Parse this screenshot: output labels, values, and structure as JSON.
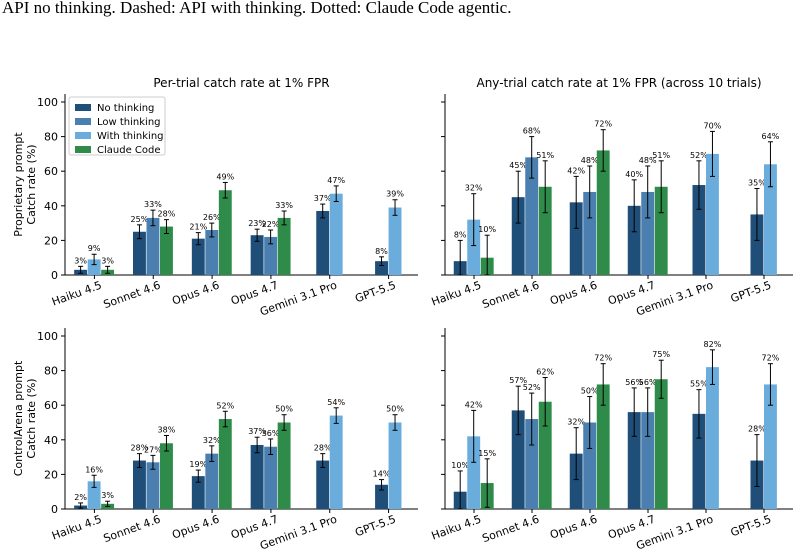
{
  "caption": "API no thinking. Dashed: API with thinking. Dotted: Claude Code agentic.",
  "chart_data": [
    {
      "type": "bar",
      "title": "Per-trial catch rate at 1% FPR",
      "ylabel": "Proprietary prompt\nCatch rate (%)",
      "categories": [
        "Haiku 4.5",
        "Sonnet 4.6",
        "Opus 4.6",
        "Opus 4.7",
        "Gemini 3.1 Pro",
        "GPT-5.5"
      ],
      "ylim": [
        0,
        100
      ],
      "yticks": [
        0,
        20,
        40,
        60,
        80,
        100
      ],
      "legend": "top-left",
      "series": [
        {
          "name": "No thinking",
          "color": "#1f4e79",
          "values": [
            3,
            25,
            21,
            23,
            37,
            8
          ],
          "err": [
            2,
            4,
            3.5,
            3.5,
            4,
            2.5
          ],
          "labels": [
            "3%",
            "25%",
            "21%",
            "23%",
            "37%",
            "8%"
          ]
        },
        {
          "name": "Low thinking",
          "color": "#4a7fb0",
          "values": [
            null,
            33,
            26,
            22,
            null,
            null
          ],
          "err": [
            null,
            4.5,
            4,
            4,
            null,
            null
          ],
          "labels": [
            null,
            "33%",
            "26%",
            "22%",
            null,
            null
          ]
        },
        {
          "name": "With thinking",
          "color": "#6aaddc",
          "values": [
            9,
            null,
            null,
            null,
            47,
            39
          ],
          "err": [
            3,
            null,
            null,
            null,
            4.5,
            4.5
          ],
          "labels": [
            "9%",
            null,
            null,
            null,
            "47%",
            "39%"
          ]
        },
        {
          "name": "Claude Code",
          "color": "#2e8b4a",
          "values": [
            3,
            28,
            49,
            33,
            null,
            null
          ],
          "err": [
            2,
            4,
            4.5,
            4,
            null,
            null
          ],
          "labels": [
            "3%",
            "28%",
            "49%",
            "33%",
            null,
            null
          ]
        }
      ]
    },
    {
      "type": "bar",
      "title": "Any-trial catch rate at 1% FPR (across 10 trials)",
      "ylabel": "",
      "categories": [
        "Haiku 4.5",
        "Sonnet 4.6",
        "Opus 4.6",
        "Opus 4.7",
        "Gemini 3.1 Pro",
        "GPT-5.5"
      ],
      "ylim": [
        0,
        100
      ],
      "yticks": [
        0,
        20,
        40,
        60,
        80,
        100
      ],
      "series": [
        {
          "name": "No thinking",
          "color": "#1f4e79",
          "values": [
            8,
            45,
            42,
            40,
            52,
            35
          ],
          "err": [
            12,
            15,
            15,
            15,
            14,
            15
          ],
          "labels": [
            "8%",
            "45%",
            "42%",
            "40%",
            "52%",
            "35%"
          ]
        },
        {
          "name": "Low thinking",
          "color": "#4a7fb0",
          "values": [
            null,
            68,
            48,
            48,
            null,
            null
          ],
          "err": [
            null,
            12,
            15,
            15,
            null,
            null
          ],
          "labels": [
            null,
            "68%",
            "48%",
            "48%",
            null,
            null
          ]
        },
        {
          "name": "With thinking",
          "color": "#6aaddc",
          "values": [
            32,
            null,
            null,
            null,
            70,
            64
          ],
          "err": [
            15,
            null,
            null,
            null,
            13,
            13
          ],
          "labels": [
            "32%",
            null,
            null,
            null,
            "70%",
            "64%"
          ]
        },
        {
          "name": "Claude Code",
          "color": "#2e8b4a",
          "values": [
            10,
            51,
            72,
            51,
            null,
            null
          ],
          "err": [
            13,
            15,
            12,
            15,
            null,
            null
          ],
          "labels": [
            "10%",
            "51%",
            "72%",
            "51%",
            null,
            null
          ]
        }
      ]
    },
    {
      "type": "bar",
      "title": "",
      "ylabel": "ControlArena prompt\nCatch rate (%)",
      "categories": [
        "Haiku 4.5",
        "Sonnet 4.6",
        "Opus 4.6",
        "Opus 4.7",
        "Gemini 3.1 Pro",
        "GPT-5.5"
      ],
      "ylim": [
        0,
        100
      ],
      "yticks": [
        0,
        20,
        40,
        60,
        80,
        100
      ],
      "series": [
        {
          "name": "No thinking",
          "color": "#1f4e79",
          "values": [
            2,
            28,
            19,
            37,
            28,
            14
          ],
          "err": [
            1.5,
            4,
            3.5,
            4.5,
            4,
            3
          ],
          "labels": [
            "2%",
            "28%",
            "19%",
            "37%",
            "28%",
            "14%"
          ]
        },
        {
          "name": "Low thinking",
          "color": "#4a7fb0",
          "values": [
            null,
            27,
            32,
            36,
            null,
            null
          ],
          "err": [
            null,
            4,
            4.5,
            4.5,
            null,
            null
          ],
          "labels": [
            null,
            "27%",
            "32%",
            "36%",
            null,
            null
          ]
        },
        {
          "name": "With thinking",
          "color": "#6aaddc",
          "values": [
            16,
            null,
            null,
            null,
            54,
            50
          ],
          "err": [
            3.5,
            null,
            null,
            null,
            4.5,
            4.5
          ],
          "labels": [
            "16%",
            null,
            null,
            null,
            "54%",
            "50%"
          ]
        },
        {
          "name": "Claude Code",
          "color": "#2e8b4a",
          "values": [
            3,
            38,
            52,
            50,
            null,
            null
          ],
          "err": [
            1.5,
            4.5,
            4.5,
            4.5,
            null,
            null
          ],
          "labels": [
            "3%",
            "38%",
            "52%",
            "50%",
            null,
            null
          ]
        }
      ]
    },
    {
      "type": "bar",
      "title": "",
      "ylabel": "",
      "categories": [
        "Haiku 4.5",
        "Sonnet 4.6",
        "Opus 4.6",
        "Opus 4.7",
        "Gemini 3.1 Pro",
        "GPT-5.5"
      ],
      "ylim": [
        0,
        100
      ],
      "yticks": [
        0,
        20,
        40,
        60,
        80,
        100
      ],
      "series": [
        {
          "name": "No thinking",
          "color": "#1f4e79",
          "values": [
            10,
            57,
            32,
            56,
            55,
            28
          ],
          "err": [
            12,
            14,
            15,
            14,
            14,
            15
          ],
          "labels": [
            "10%",
            "57%",
            "32%",
            "56%",
            "55%",
            "28%"
          ]
        },
        {
          "name": "Low thinking",
          "color": "#4a7fb0",
          "values": [
            null,
            52,
            50,
            56,
            null,
            null
          ],
          "err": [
            null,
            15,
            15,
            14,
            null,
            null
          ],
          "labels": [
            null,
            "52%",
            "50%",
            "56%",
            null,
            null
          ]
        },
        {
          "name": "With thinking",
          "color": "#6aaddc",
          "values": [
            42,
            null,
            null,
            null,
            82,
            72
          ],
          "err": [
            15,
            null,
            null,
            null,
            10,
            12
          ],
          "labels": [
            "42%",
            null,
            null,
            null,
            "82%",
            "72%"
          ]
        },
        {
          "name": "Claude Code",
          "color": "#2e8b4a",
          "values": [
            15,
            62,
            72,
            75,
            null,
            null
          ],
          "err": [
            14,
            14,
            12,
            11,
            null,
            null
          ],
          "labels": [
            "15%",
            "62%",
            "72%",
            "75%",
            null,
            null
          ]
        }
      ]
    }
  ]
}
